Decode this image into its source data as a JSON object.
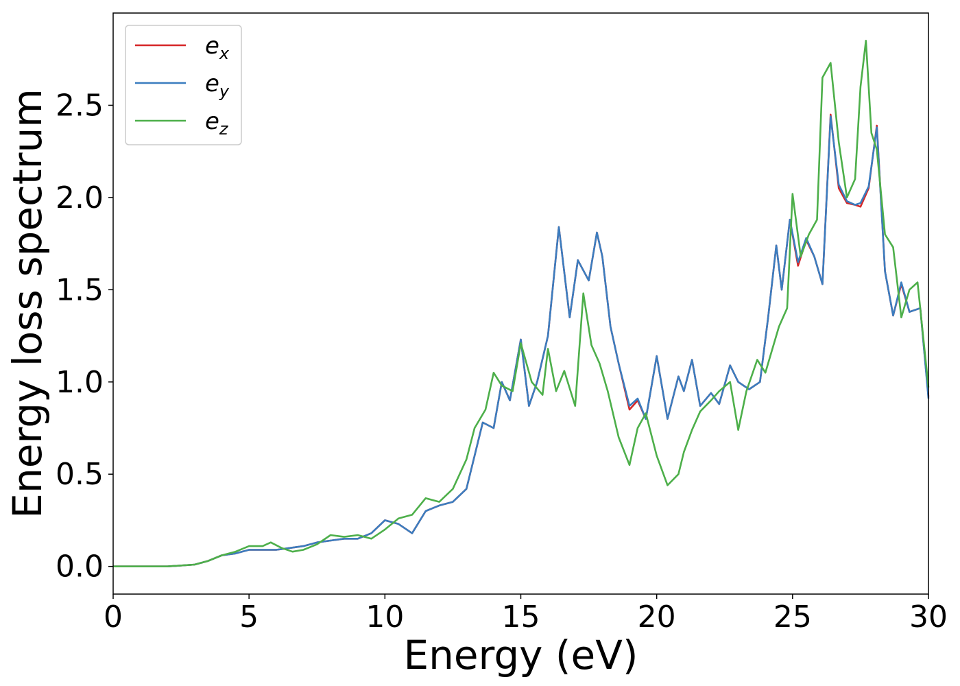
{
  "chart_data": {
    "type": "line",
    "xlabel": "Energy (eV)",
    "ylabel": "Energy loss spectrum",
    "xlim": [
      0,
      30
    ],
    "ylim": [
      -0.15,
      3.0
    ],
    "xticks": [
      0,
      5,
      10,
      15,
      20,
      25,
      30
    ],
    "xtick_labels": [
      "0",
      "5",
      "10",
      "15",
      "20",
      "25",
      "30"
    ],
    "yticks": [
      0.0,
      0.5,
      1.0,
      1.5,
      2.0,
      2.5
    ],
    "ytick_labels": [
      "0.0",
      "0.5",
      "1.0",
      "1.5",
      "2.0",
      "2.5"
    ],
    "grid": false,
    "legend_position": "top-left",
    "series": [
      {
        "name": "e_x",
        "legend_base": "e",
        "legend_sub": "x",
        "color": "#d62728",
        "x": [
          0,
          0.5,
          1,
          2,
          3,
          3.5,
          4,
          4.5,
          5,
          5.5,
          6,
          6.5,
          7,
          7.5,
          8,
          8.5,
          9,
          9.5,
          10,
          10.5,
          11,
          11.5,
          12,
          12.5,
          13,
          13.3,
          13.6,
          14,
          14.3,
          14.6,
          15,
          15.3,
          15.6,
          16,
          16.4,
          16.8,
          17.1,
          17.5,
          17.8,
          18,
          18.3,
          18.6,
          19,
          19.3,
          19.6,
          20,
          20.4,
          20.8,
          21,
          21.3,
          21.6,
          22,
          22.3,
          22.7,
          23,
          23.4,
          23.8,
          24.1,
          24.4,
          24.6,
          24.9,
          25.2,
          25.5,
          25.8,
          26.1,
          26.4,
          26.7,
          27,
          27.3,
          27.5,
          27.8,
          28.1,
          28.4,
          28.7,
          29,
          29.3,
          29.7,
          30
        ],
        "y": [
          0.0,
          0.0,
          0.0,
          0.0,
          0.01,
          0.03,
          0.06,
          0.07,
          0.09,
          0.09,
          0.09,
          0.1,
          0.11,
          0.13,
          0.14,
          0.15,
          0.15,
          0.18,
          0.25,
          0.23,
          0.18,
          0.3,
          0.33,
          0.35,
          0.42,
          0.6,
          0.78,
          0.75,
          1.0,
          0.9,
          1.23,
          0.87,
          1.0,
          1.25,
          1.84,
          1.35,
          1.66,
          1.55,
          1.81,
          1.68,
          1.3,
          1.1,
          0.85,
          0.9,
          0.8,
          1.14,
          0.8,
          1.03,
          0.95,
          1.12,
          0.87,
          0.94,
          0.88,
          1.09,
          1.0,
          0.96,
          1.0,
          1.35,
          1.74,
          1.5,
          1.88,
          1.63,
          1.77,
          1.68,
          1.53,
          2.45,
          2.05,
          1.97,
          1.96,
          1.95,
          2.05,
          2.39,
          1.6,
          1.36,
          1.53,
          1.38,
          1.4,
          0.92
        ]
      },
      {
        "name": "e_y",
        "legend_base": "e",
        "legend_sub": "y",
        "color": "#3b7dbf",
        "x": [
          0,
          0.5,
          1,
          2,
          3,
          3.5,
          4,
          4.5,
          5,
          5.5,
          6,
          6.5,
          7,
          7.5,
          8,
          8.5,
          9,
          9.5,
          10,
          10.5,
          11,
          11.5,
          12,
          12.5,
          13,
          13.3,
          13.6,
          14,
          14.3,
          14.6,
          15,
          15.3,
          15.6,
          16,
          16.4,
          16.8,
          17.1,
          17.5,
          17.8,
          18,
          18.3,
          18.6,
          19,
          19.3,
          19.6,
          20,
          20.4,
          20.8,
          21,
          21.3,
          21.6,
          22,
          22.3,
          22.7,
          23,
          23.4,
          23.8,
          24.1,
          24.4,
          24.6,
          24.9,
          25.2,
          25.5,
          25.8,
          26.1,
          26.4,
          26.7,
          27,
          27.3,
          27.5,
          27.8,
          28.1,
          28.4,
          28.7,
          29,
          29.3,
          29.7,
          30
        ],
        "y": [
          0.0,
          0.0,
          0.0,
          0.0,
          0.01,
          0.03,
          0.06,
          0.07,
          0.09,
          0.09,
          0.09,
          0.1,
          0.11,
          0.13,
          0.14,
          0.15,
          0.15,
          0.18,
          0.25,
          0.23,
          0.18,
          0.3,
          0.33,
          0.35,
          0.42,
          0.6,
          0.78,
          0.75,
          1.0,
          0.9,
          1.23,
          0.87,
          1.0,
          1.25,
          1.84,
          1.35,
          1.66,
          1.55,
          1.81,
          1.68,
          1.3,
          1.1,
          0.87,
          0.91,
          0.8,
          1.14,
          0.8,
          1.03,
          0.95,
          1.12,
          0.87,
          0.94,
          0.88,
          1.09,
          1.0,
          0.96,
          1.0,
          1.35,
          1.74,
          1.5,
          1.88,
          1.65,
          1.78,
          1.68,
          1.53,
          2.44,
          2.07,
          1.98,
          1.96,
          1.97,
          2.06,
          2.38,
          1.6,
          1.36,
          1.54,
          1.38,
          1.4,
          0.91
        ]
      },
      {
        "name": "e_z",
        "legend_base": "e",
        "legend_sub": "z",
        "color": "#4daf4a",
        "x": [
          0,
          0.5,
          1,
          2,
          3,
          3.5,
          4,
          4.5,
          5,
          5.5,
          5.8,
          6.2,
          6.6,
          7,
          7.5,
          8,
          8.5,
          9,
          9.5,
          10,
          10.5,
          11,
          11.5,
          12,
          12.5,
          13,
          13.3,
          13.7,
          14,
          14.3,
          14.7,
          15,
          15.4,
          15.8,
          16,
          16.3,
          16.6,
          17,
          17.3,
          17.6,
          17.9,
          18.2,
          18.6,
          19,
          19.3,
          19.6,
          20,
          20.4,
          20.8,
          21,
          21.3,
          21.6,
          22,
          22.3,
          22.7,
          23,
          23.3,
          23.7,
          24,
          24.2,
          24.5,
          24.8,
          25,
          25.3,
          25.6,
          25.9,
          26.1,
          26.4,
          26.7,
          27,
          27.3,
          27.5,
          27.7,
          27.9,
          28.1,
          28.4,
          28.7,
          29,
          29.3,
          29.6,
          30
        ],
        "y": [
          0.0,
          0.0,
          0.0,
          0.0,
          0.01,
          0.03,
          0.06,
          0.08,
          0.11,
          0.11,
          0.13,
          0.1,
          0.08,
          0.09,
          0.12,
          0.17,
          0.16,
          0.17,
          0.15,
          0.2,
          0.26,
          0.28,
          0.37,
          0.35,
          0.42,
          0.58,
          0.75,
          0.85,
          1.05,
          0.98,
          0.95,
          1.21,
          1.0,
          0.93,
          1.18,
          0.95,
          1.06,
          0.87,
          1.48,
          1.2,
          1.1,
          0.95,
          0.7,
          0.55,
          0.75,
          0.83,
          0.6,
          0.44,
          0.5,
          0.62,
          0.74,
          0.84,
          0.9,
          0.95,
          1.0,
          0.74,
          0.95,
          1.12,
          1.05,
          1.15,
          1.3,
          1.4,
          2.02,
          1.68,
          1.8,
          1.88,
          2.65,
          2.73,
          2.3,
          2.0,
          2.1,
          2.6,
          2.85,
          2.35,
          2.26,
          1.8,
          1.73,
          1.35,
          1.5,
          1.54,
          0.97
        ]
      }
    ]
  }
}
